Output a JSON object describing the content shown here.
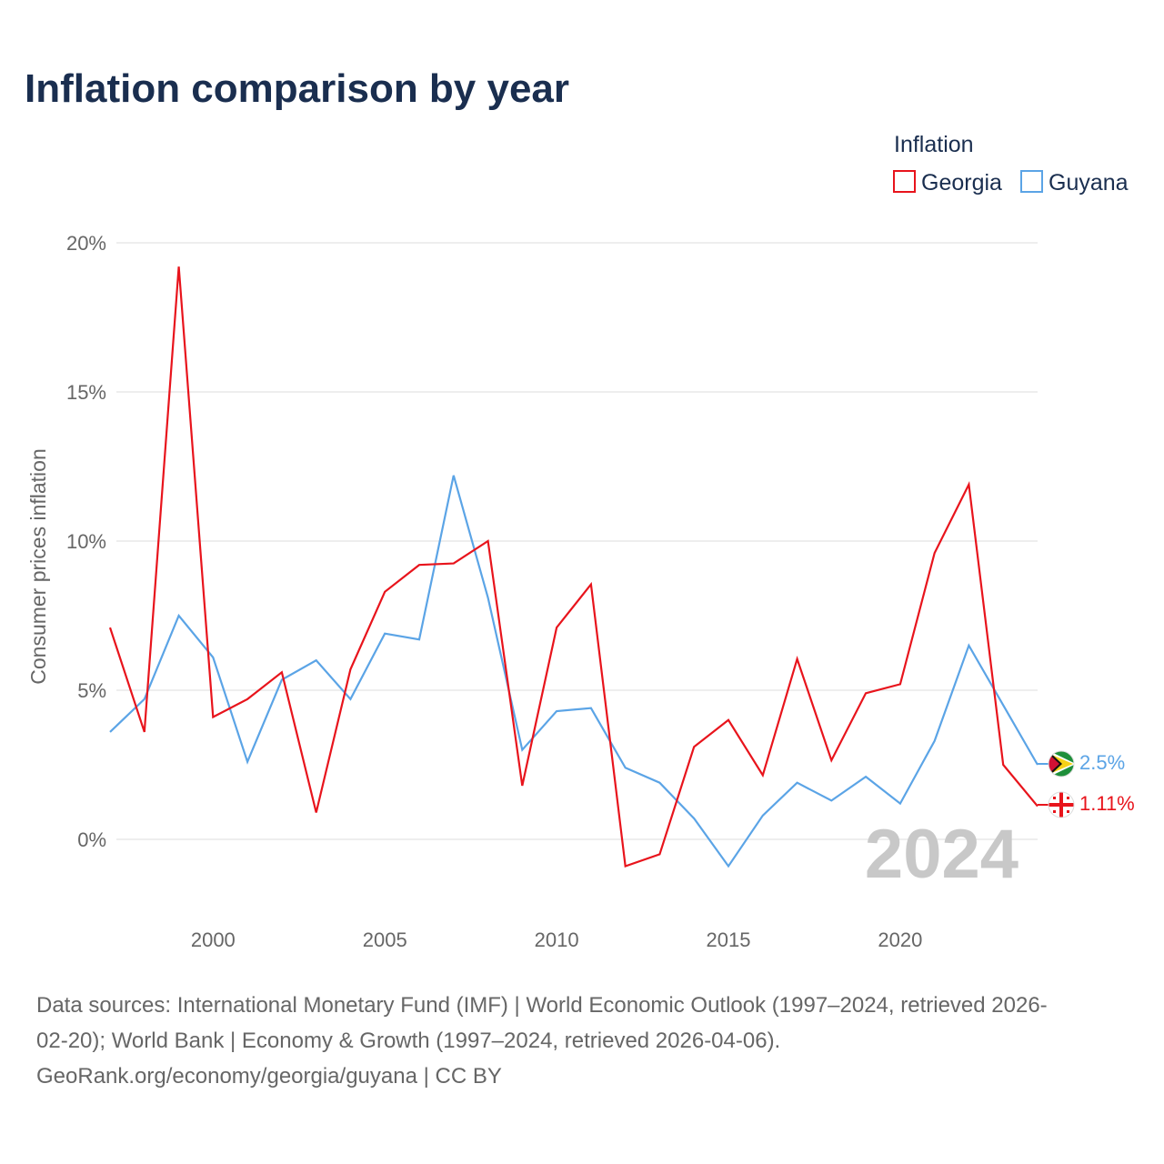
{
  "title": "Inflation comparison by year",
  "legend": {
    "title": "Inflation",
    "items": [
      {
        "name": "Georgia",
        "color": "#e8141c"
      },
      {
        "name": "Guyana",
        "color": "#5ba4e6"
      }
    ]
  },
  "watermark_year": "2024",
  "end_labels": {
    "guyana": "2.5%",
    "georgia": "1.11%"
  },
  "flags": {
    "guyana": "guyana-flag-icon",
    "georgia": "georgia-flag-icon"
  },
  "source": {
    "line1": "Data sources: International Monetary Fund (IMF) | World Economic Outlook (1997–2024, retrieved 2026-",
    "line2": "02-20); World Bank | Economy & Growth (1997–2024, retrieved 2026-04-06).",
    "line3": "GeoRank.org/economy/georgia/guyana | CC BY"
  },
  "chart_data": {
    "type": "line",
    "title": "Inflation comparison by year",
    "xlabel": "",
    "ylabel": "Consumer prices inflation",
    "xlim": [
      1997,
      2024
    ],
    "ylim": [
      -2.5,
      20
    ],
    "yticks": [
      0,
      5,
      10,
      15,
      20
    ],
    "ytick_labels": [
      "0%",
      "5%",
      "10%",
      "15%",
      "20%"
    ],
    "xticks": [
      2000,
      2005,
      2010,
      2015,
      2020
    ],
    "xtick_labels": [
      "2000",
      "2005",
      "2010",
      "2015",
      "2020"
    ],
    "grid": true,
    "legend_position": "top-right",
    "x": [
      1997,
      1998,
      1999,
      2000,
      2001,
      2002,
      2003,
      2004,
      2005,
      2006,
      2007,
      2008,
      2009,
      2010,
      2011,
      2012,
      2013,
      2014,
      2015,
      2016,
      2017,
      2018,
      2019,
      2020,
      2021,
      2022,
      2023,
      2024
    ],
    "series": [
      {
        "name": "Georgia",
        "color": "#e8141c",
        "values": [
          7.1,
          3.6,
          19.2,
          4.1,
          4.7,
          5.6,
          0.9,
          5.7,
          8.3,
          9.2,
          9.25,
          10.0,
          1.8,
          7.1,
          8.55,
          -0.9,
          -0.5,
          3.1,
          4.0,
          2.15,
          6.05,
          2.65,
          4.9,
          5.2,
          9.6,
          11.9,
          2.5,
          1.11
        ]
      },
      {
        "name": "Guyana",
        "color": "#5ba4e6",
        "values": [
          3.6,
          4.7,
          7.5,
          6.1,
          2.6,
          5.35,
          6.0,
          4.7,
          6.9,
          6.7,
          12.2,
          8.1,
          3.0,
          4.3,
          4.4,
          2.4,
          1.9,
          0.7,
          -0.9,
          0.8,
          1.9,
          1.3,
          2.1,
          1.2,
          3.3,
          6.5,
          4.5,
          2.5
        ]
      }
    ]
  }
}
